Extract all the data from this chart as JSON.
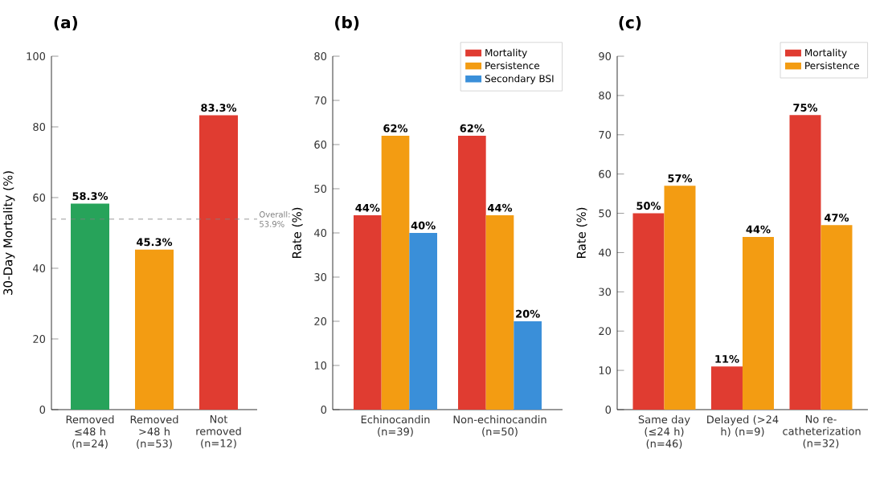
{
  "chart_data": [
    {
      "type": "bar",
      "title": "(a)",
      "ylabel": "30-Day Mortality (%)",
      "categories": [
        "Removed ≤48 h (n=24)",
        "Removed >48 h (n=53)",
        "Not removed (n=12)"
      ],
      "values": [
        58.3,
        45.3,
        83.3
      ],
      "colors": [
        "#27a35a",
        "#f39c12",
        "#e03c31"
      ],
      "value_labels": [
        "58.3%",
        "45.3%",
        "83.3%"
      ],
      "ylim": [
        0,
        100
      ],
      "yticks": [
        0,
        20,
        40,
        60,
        80,
        100
      ],
      "ref_lines": [
        {
          "axis": "y",
          "value": 53.9,
          "label": "Overall: 53.9%",
          "color": "#808080",
          "line_style": "dashed"
        }
      ],
      "legend": false
    },
    {
      "type": "bar",
      "title": "(b)",
      "ylabel": "Rate (%)",
      "categories": [
        "Echinocandin (n=39)",
        "Non-echinocandin (n=50)"
      ],
      "series": [
        {
          "name": "Mortality",
          "color": "#e03c31",
          "values": [
            44,
            62
          ],
          "value_labels": [
            "44%",
            "62%"
          ]
        },
        {
          "name": "Persistence",
          "color": "#f39c12",
          "values": [
            62,
            44
          ],
          "value_labels": [
            "62%",
            "44%"
          ]
        },
        {
          "name": "Secondary BSI",
          "color": "#3a8fd9",
          "values": [
            40,
            20
          ],
          "value_labels": [
            "40%",
            "20%"
          ]
        }
      ],
      "ylim": [
        0,
        80
      ],
      "yticks": [
        0,
        10,
        20,
        30,
        40,
        50,
        60,
        70,
        80
      ],
      "legend": "top right"
    },
    {
      "type": "bar",
      "title": "(c)",
      "ylabel": "Rate (%)",
      "categories": [
        "Same day (≤24 h) (n=46)",
        "Delayed (>24 h) (n=9)",
        "No re-catheterization (n=32)"
      ],
      "series": [
        {
          "name": "Mortality",
          "color": "#e03c31",
          "values": [
            50,
            11,
            75
          ],
          "value_labels": [
            "50%",
            "11%",
            "75%"
          ]
        },
        {
          "name": "Persistence",
          "color": "#f39c12",
          "values": [
            57,
            44,
            47
          ],
          "value_labels": [
            "57%",
            "44%",
            "47%"
          ]
        }
      ],
      "ylim": [
        0,
        90
      ],
      "yticks": [
        0,
        10,
        20,
        30,
        40,
        50,
        60,
        70,
        80,
        90
      ],
      "legend": "top right"
    }
  ]
}
